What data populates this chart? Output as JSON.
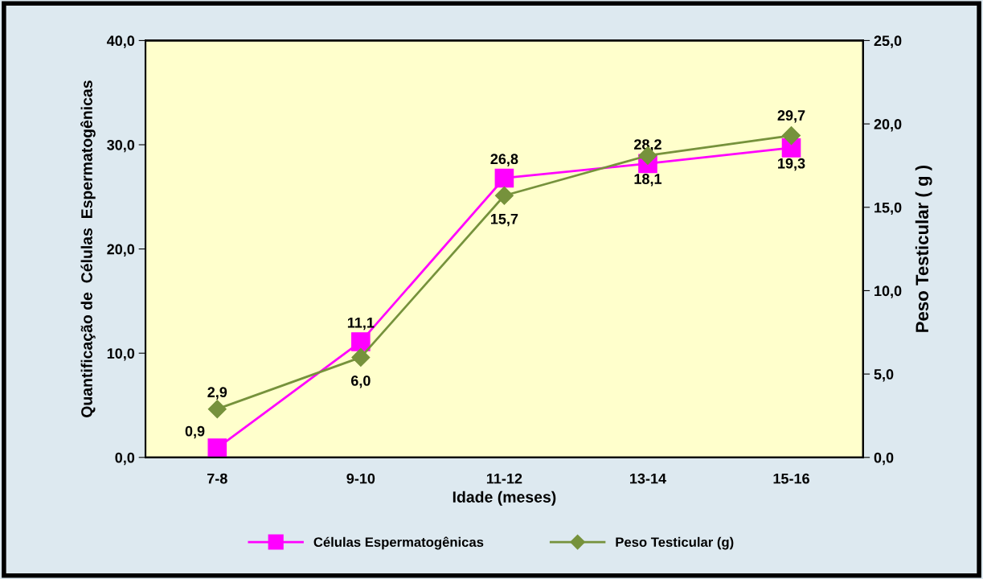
{
  "chart_data": {
    "type": "line",
    "xlabel": "Idade (meses)",
    "ylabel": "Quantificação de  Células  Espermatogênicas",
    "y2label": "Peso Testicular ( g )",
    "categories": [
      "7-8",
      "9-10",
      "11-12",
      "13-14",
      "15-16"
    ],
    "series": [
      {
        "name": "Células Espermatogênicas",
        "color": "#ff00ff",
        "marker": "square",
        "values": [
          0.9,
          11.1,
          26.8,
          28.2,
          29.7
        ],
        "value_labels": [
          "0,9",
          "11,1",
          "26,8",
          "28,2",
          "29,7"
        ]
      },
      {
        "name": "Peso Testicular (g)",
        "color": "#76923c",
        "marker": "diamond",
        "axis": "y2",
        "values": [
          2.9,
          6.0,
          15.7,
          18.1,
          19.3
        ],
        "value_labels": [
          "2,9",
          "6,0",
          "15,7",
          "18,1",
          "19,3"
        ]
      }
    ],
    "ylim": [
      0,
      40
    ],
    "yticks": [
      {
        "value": 0,
        "label": "0,0"
      },
      {
        "value": 10,
        "label": "10,0"
      },
      {
        "value": 20,
        "label": "20,0"
      },
      {
        "value": 30,
        "label": "30,0"
      },
      {
        "value": 40,
        "label": "40,0"
      }
    ],
    "y2lim": [
      0,
      25
    ],
    "y2ticks": [
      {
        "value": 0,
        "label": "0,0"
      },
      {
        "value": 5,
        "label": "5,0"
      },
      {
        "value": 10,
        "label": "10,0"
      },
      {
        "value": 15,
        "label": "15,0"
      },
      {
        "value": 20,
        "label": "20,0"
      },
      {
        "value": 25,
        "label": "25,0"
      }
    ],
    "grid": false,
    "legend": "bottom",
    "line_style": "solid"
  }
}
